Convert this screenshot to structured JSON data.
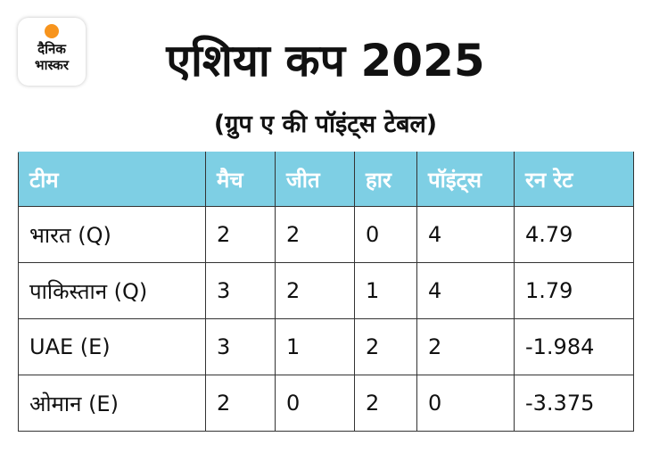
{
  "logo": {
    "line1": "दैनिक",
    "line2": "भास्कर"
  },
  "header": {
    "title": "एशिया कप 2025",
    "subtitle": "(ग्रुप ए की पॉइंट्स टेबल)"
  },
  "table": {
    "columns": [
      "टीम",
      "मैच",
      "जीत",
      "हार",
      "पॉइंट्स",
      "रन रेट"
    ],
    "rows": [
      [
        "भारत (Q)",
        2,
        2,
        0,
        4,
        4.79
      ],
      [
        "पाकिस्तान (Q)",
        3,
        2,
        1,
        4,
        1.79
      ],
      [
        "UAE (E)",
        3,
        1,
        2,
        2,
        -1.984
      ],
      [
        "ओमान (E)",
        2,
        0,
        2,
        0,
        -3.375
      ]
    ]
  }
}
